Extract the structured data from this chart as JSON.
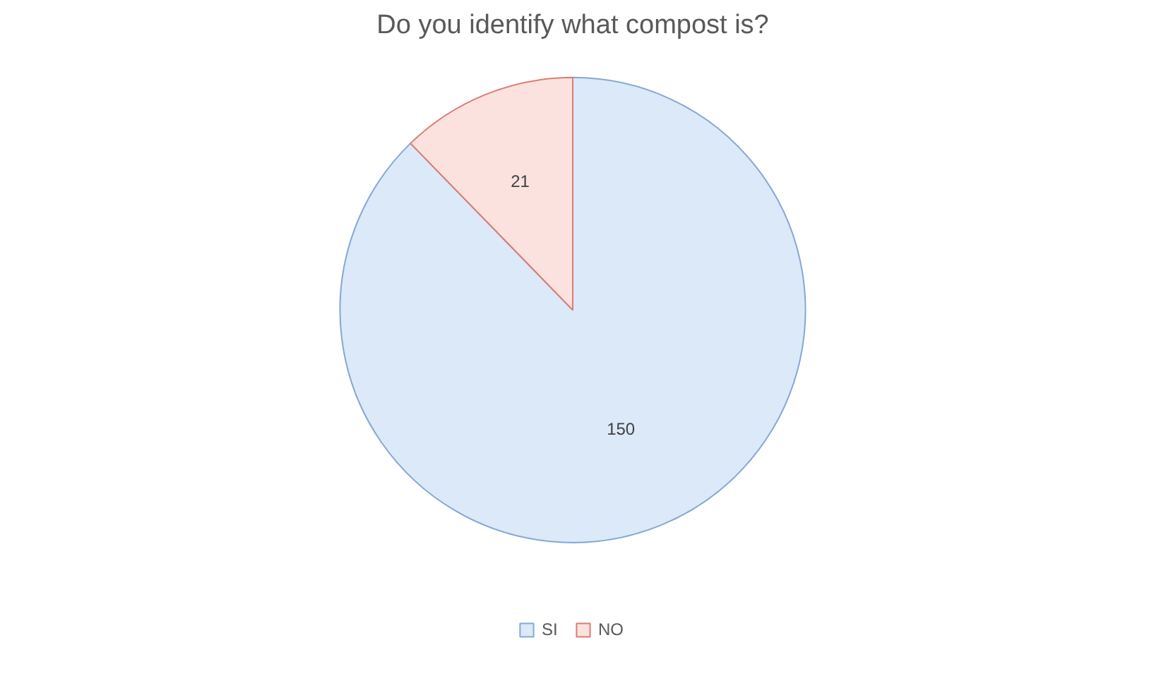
{
  "chart_data": {
    "type": "pie",
    "title": "Do you identify what compost is?",
    "categories": [
      "SI",
      "NO"
    ],
    "values": [
      150,
      21
    ],
    "colors": [
      "#dbe9f9",
      "#fbe2df"
    ],
    "data_labels": true,
    "legend": "bottom"
  }
}
